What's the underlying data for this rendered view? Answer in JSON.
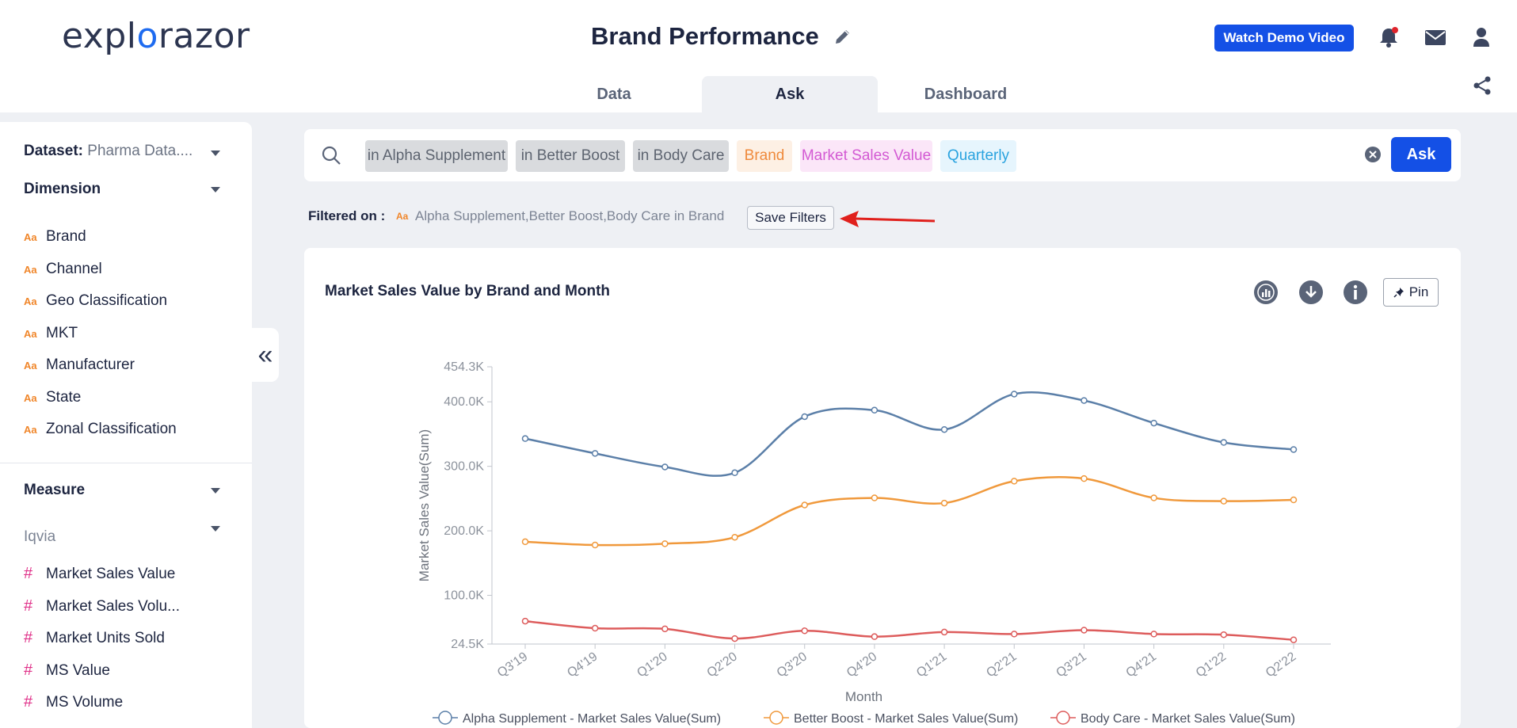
{
  "header": {
    "logo_prefix": "expl",
    "logo_o": "o",
    "logo_suffix": "razor",
    "title": "Brand Performance",
    "demo_button": "Watch Demo Video",
    "tabs": [
      {
        "label": "Data",
        "active": false
      },
      {
        "label": "Ask",
        "active": true
      },
      {
        "label": "Dashboard",
        "active": false
      }
    ]
  },
  "sidebar": {
    "dataset_label": "Dataset:",
    "dataset_value": "Pharma Data....",
    "dimension_title": "Dimension",
    "dimensions": [
      "Brand",
      "Channel",
      "Geo Classification",
      "MKT",
      "Manufacturer",
      "State",
      "Zonal Classification"
    ],
    "measure_title": "Measure",
    "measure_group": "Iqvia",
    "measures": [
      "Market Sales Value",
      "Market Sales Volu...",
      "Market Units Sold",
      "MS Value",
      "MS Volume"
    ],
    "dimension_icon": "Aa",
    "measure_icon": "#"
  },
  "search": {
    "chips": [
      {
        "text": "in Alpha Supplement",
        "style": "gray"
      },
      {
        "text": "in Better Boost",
        "style": "gray"
      },
      {
        "text": "in Body Care",
        "style": "gray"
      },
      {
        "text": "Brand",
        "style": "orange"
      },
      {
        "text": "Market Sales Value",
        "style": "pink"
      },
      {
        "text": "Quarterly",
        "style": "blue"
      }
    ],
    "ask_button": "Ask"
  },
  "filters": {
    "label": "Filtered on :",
    "icon": "Aa",
    "value": "Alpha Supplement,Better Boost,Body Care in Brand",
    "save_button": "Save Filters"
  },
  "card": {
    "title": "Market Sales Value by Brand and Month",
    "pin_label": "Pin"
  },
  "colors": {
    "accent": "#1450e6",
    "alpha": "#5b7fa8",
    "better": "#f0993c",
    "body": "#dd5c5c"
  },
  "chart_data": {
    "type": "line",
    "xlabel": "Month",
    "ylabel": "Market Sales Value(Sum)",
    "categories": [
      "Q3'19",
      "Q4'19",
      "Q1'20",
      "Q2'20",
      "Q3'20",
      "Q4'20",
      "Q1'21",
      "Q2'21",
      "Q3'21",
      "Q4'21",
      "Q1'22",
      "Q2'22"
    ],
    "ylim": [
      24500,
      454300
    ],
    "yticks": [
      {
        "value": 24500,
        "label": "24.5K"
      },
      {
        "value": 100000,
        "label": "100.0K"
      },
      {
        "value": 200000,
        "label": "200.0K"
      },
      {
        "value": 300000,
        "label": "300.0K"
      },
      {
        "value": 400000,
        "label": "400.0K"
      },
      {
        "value": 454300,
        "label": "454.3K"
      }
    ],
    "series": [
      {
        "name": "Alpha Supplement - Market Sales Value(Sum)",
        "color": "#5b7fa8",
        "values": [
          343000,
          320000,
          299000,
          290000,
          377000,
          387000,
          357000,
          412000,
          402000,
          367000,
          337000,
          326000
        ]
      },
      {
        "name": "Better Boost - Market Sales Value(Sum)",
        "color": "#f0993c",
        "values": [
          183000,
          178000,
          180000,
          190000,
          240000,
          251000,
          243000,
          277000,
          281000,
          251000,
          246000,
          248000
        ]
      },
      {
        "name": "Body Care - Market Sales Value(Sum)",
        "color": "#dd5c5c",
        "values": [
          60000,
          49000,
          48000,
          33000,
          45000,
          36000,
          43000,
          40000,
          46000,
          40000,
          39000,
          31000
        ]
      }
    ],
    "grid": false,
    "legend": "bottom"
  }
}
